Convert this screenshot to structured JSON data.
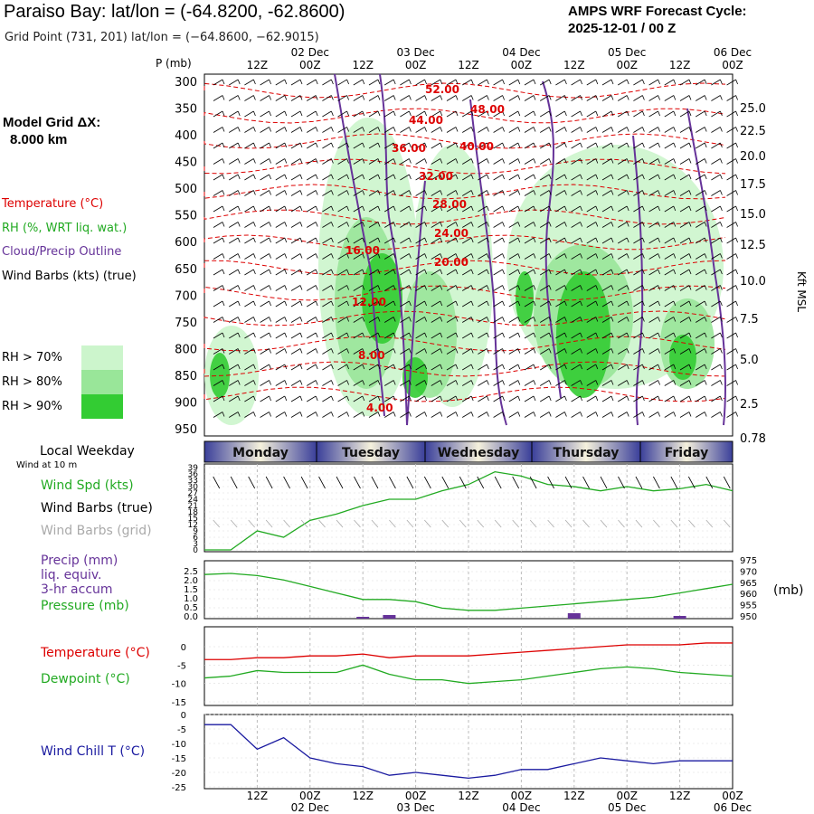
{
  "header": {
    "title": "Paraiso Bay:  lat/lon = (-64.8200, -62.8600)",
    "subtitle": "Grid Point (731, 201) lat/lon = (−64.8600, −62.9015)",
    "cycle_line1": "AMPS WRF Forecast Cycle:",
    "cycle_line2": "2025-12-01 / 00  Z"
  },
  "model": {
    "line1": "Model Grid ΔX:",
    "line2": "8.000 km"
  },
  "legend_top": {
    "temperature": "Temperature (°C)",
    "rh": "RH (%, WRT liq. wat.)",
    "cloud": "Cloud/Precip Outline",
    "wind": "Wind Barbs (kts) (true)",
    "rh70": "RH > 70%",
    "rh80": "RH > 80%",
    "rh90": "RH > 90%",
    "colors": {
      "rh70": "#ccf5cc",
      "rh80": "#99e699",
      "rh90": "#33cc33",
      "temp": "#dd0000",
      "cloud": "#663399"
    }
  },
  "time_axis": {
    "top_labels": [
      "12Z",
      "00Z",
      "12Z",
      "00Z",
      "12Z",
      "00Z",
      "12Z",
      "00Z",
      "12Z",
      "00Z"
    ],
    "date_labels": [
      "02 Dec",
      "03 Dec",
      "04 Dec",
      "05 Dec",
      "06 Dec"
    ],
    "pressure_unit": "P (mb)",
    "height_unit": "Kft MSL"
  },
  "weekday": {
    "title": "Local Weekday",
    "days": [
      "Monday",
      "Tuesday",
      "Wednesday",
      "Thursday",
      "Friday"
    ]
  },
  "panels": {
    "wind": {
      "sub": "Wind at 10 m",
      "spd": "Wind Spd (kts)",
      "barbs_true": "Wind Barbs (true)",
      "barbs_grid": "Wind Barbs (grid)"
    },
    "precip": {
      "l1": "Precip (mm)",
      "l2": "liq. equiv.",
      "l3": "3-hr accum",
      "pressure": "Pressure (mb)",
      "right_unit": "(mb)"
    },
    "temp": {
      "t": "Temperature (°C)",
      "d": "Dewpoint (°C)"
    },
    "chill": {
      "w": "Wind Chill T (°C)"
    }
  },
  "chart_data": [
    {
      "type": "area",
      "title": "",
      "y_axis_left": {
        "label": "P (mb)",
        "ticks": [
          300,
          350,
          400,
          450,
          500,
          550,
          600,
          650,
          700,
          750,
          800,
          850,
          900,
          950
        ]
      },
      "y_axis_right": {
        "label": "Kft MSL",
        "ticks": [
          "25.0",
          "22.5",
          "20.0",
          "17.5",
          "15.0",
          "12.5",
          "10.0",
          "7.5",
          "5.0",
          "2.5",
          "0.78"
        ]
      },
      "temperature_contours": [
        "52.00",
        "48.00",
        "44.00",
        "40.00",
        "36.00",
        "32.00",
        "28.00",
        "24.00",
        "20.00",
        "16.00",
        "12.00",
        "8.00",
        "4.00"
      ]
    },
    {
      "type": "line",
      "title": "Wind Spd (kts)",
      "y_ticks": [
        0,
        3,
        6,
        9,
        12,
        15,
        18,
        21,
        24,
        27,
        30,
        33,
        36,
        39
      ],
      "hours": [
        0,
        6,
        12,
        18,
        24,
        30,
        36,
        42,
        48,
        54,
        60,
        66,
        72,
        78,
        84,
        90,
        96,
        102,
        108,
        114,
        120
      ],
      "series": [
        {
          "name": "Wind Spd (kts)",
          "values": [
            0,
            0,
            9,
            6,
            14,
            17,
            21,
            24,
            24,
            28,
            31,
            37,
            35,
            31,
            30,
            28,
            30,
            28,
            29,
            31,
            28
          ]
        }
      ]
    },
    {
      "type": "line",
      "y_left_ticks": [
        "2.5",
        "2.0",
        "1.5",
        "1.0",
        "0.5",
        "0.0"
      ],
      "y_right_ticks": [
        975,
        970,
        965,
        960,
        955,
        950
      ],
      "hours": [
        0,
        6,
        12,
        18,
        24,
        30,
        36,
        42,
        48,
        54,
        60,
        66,
        72,
        78,
        84,
        90,
        96,
        102,
        108,
        114,
        120
      ],
      "series": [
        {
          "name": "Pressure (mb)",
          "values": [
            969.5,
            970,
            969,
            967,
            964,
            961,
            958,
            958,
            957,
            954,
            953,
            953,
            954,
            955,
            956,
            957,
            958,
            959,
            961,
            963,
            965
          ]
        }
      ],
      "precip_bars": [
        {
          "hour": 36,
          "mm": 0.1
        },
        {
          "hour": 42,
          "mm": 0.2
        },
        {
          "hour": 84,
          "mm": 0.3
        },
        {
          "hour": 108,
          "mm": 0.15
        }
      ]
    },
    {
      "type": "line",
      "y_ticks": [
        0,
        -5,
        -10,
        -15
      ],
      "hours": [
        0,
        6,
        12,
        18,
        24,
        30,
        36,
        42,
        48,
        54,
        60,
        66,
        72,
        78,
        84,
        90,
        96,
        102,
        108,
        114,
        120
      ],
      "series": [
        {
          "name": "Temperature (°C)",
          "values": [
            -3.5,
            -3.5,
            -3,
            -3,
            -2.5,
            -2.5,
            -2,
            -3,
            -2.5,
            -2.5,
            -2.5,
            -2,
            -1.5,
            -1,
            -0.5,
            0,
            0.5,
            0.5,
            0.5,
            1,
            1
          ]
        },
        {
          "name": "Dewpoint (°C)",
          "values": [
            -8.5,
            -8,
            -6.5,
            -7,
            -7,
            -7,
            -5,
            -7.5,
            -9,
            -9,
            -10,
            -9.5,
            -9,
            -8,
            -7,
            -6,
            -5.5,
            -6,
            -7,
            -7.5,
            -8
          ]
        }
      ]
    },
    {
      "type": "line",
      "y_ticks": [
        -5,
        -10,
        -15,
        -20,
        -25
      ],
      "hours": [
        0,
        6,
        12,
        18,
        24,
        30,
        36,
        42,
        48,
        54,
        60,
        66,
        72,
        78,
        84,
        90,
        96,
        102,
        108,
        114,
        120
      ],
      "series": [
        {
          "name": "Wind Chill T (°C)",
          "values": [
            -3.5,
            -3.5,
            -12,
            -8,
            -15,
            -17,
            -18,
            -21,
            -20,
            -21,
            -22,
            -21,
            -19,
            -19,
            -17,
            -15,
            -16,
            -17,
            -16,
            -16,
            -16
          ]
        }
      ]
    }
  ]
}
